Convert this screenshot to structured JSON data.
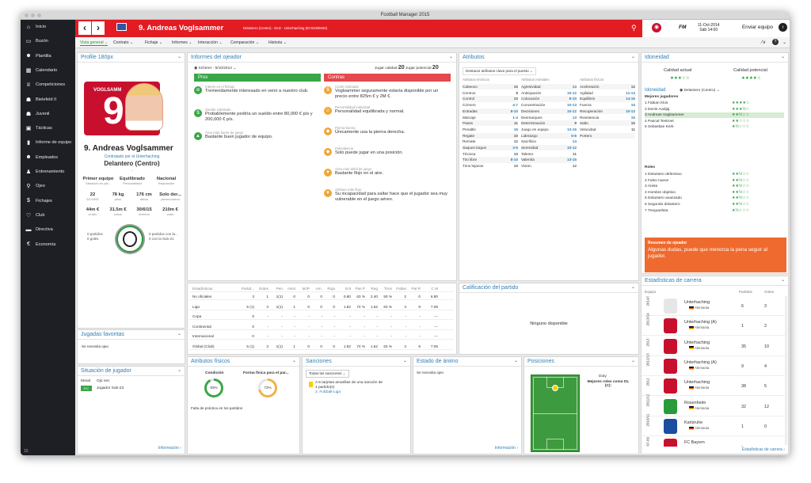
{
  "window": {
    "title": "Football Manager 2015"
  },
  "sidebar": {
    "items": [
      {
        "label": "Inicio",
        "icon": "home-icon",
        "glyph": "⌂"
      },
      {
        "label": "Buzón",
        "icon": "inbox-icon",
        "glyph": "▭"
      },
      {
        "label": "Plantilla",
        "icon": "squad-icon",
        "glyph": "☻"
      },
      {
        "label": "Calendario",
        "icon": "calendar-icon",
        "glyph": "▦"
      },
      {
        "label": "Competiciones",
        "icon": "trophy-icon",
        "glyph": "♕"
      },
      {
        "label": "Bielefeld II",
        "icon": "team-icon",
        "glyph": "☗"
      },
      {
        "label": "Juvenil",
        "icon": "youth-icon",
        "glyph": "☗"
      },
      {
        "label": "Tácticas",
        "icon": "tactics-icon",
        "glyph": "▣"
      },
      {
        "label": "Informe de equipo",
        "icon": "report-icon",
        "glyph": "▮"
      },
      {
        "label": "Empleados",
        "icon": "staff-icon",
        "glyph": "☻"
      },
      {
        "label": "Entrenamiento",
        "icon": "training-icon",
        "glyph": "♟"
      },
      {
        "label": "Ojeo",
        "icon": "scouting-icon",
        "glyph": "⚲"
      },
      {
        "label": "Fichajes",
        "icon": "transfers-icon",
        "glyph": "$"
      },
      {
        "label": "Club",
        "icon": "club-icon",
        "glyph": "♡"
      },
      {
        "label": "Directiva",
        "icon": "board-icon",
        "glyph": "▬"
      },
      {
        "label": "Economía",
        "icon": "finance-icon",
        "glyph": "€"
      }
    ],
    "version": "15"
  },
  "header": {
    "player_name": "9. Andreas Voglsammer",
    "subtitle": "Delantero (Centro) - DLD - Unterhaching (ID:91000630)",
    "date_line1": "11-Oct-2014",
    "date_line2": "Sáb 14:00",
    "continue_label": "Enviar equipo",
    "fm_label": "FM"
  },
  "menubar": {
    "items": [
      "Vista general",
      "Contrato",
      "Fichaje",
      "Informes",
      "Interacción",
      "Comparación",
      "Historia"
    ]
  },
  "profile": {
    "title": "Profile 180px",
    "shirt_number": "9",
    "shirt_club": "VOGLSAMM",
    "name": "9. Andreas Voglsammer",
    "contract_line": "Contratado por el Unterhaching",
    "position": "Delantero (Centro)",
    "dash": "-",
    "labels": [
      {
        "value": "Primer equipo",
        "sub": "Situación en pla..."
      },
      {
        "value": "Equilibrado",
        "sub": "Personalidad"
      },
      {
        "value": "Nacional",
        "sub": "Reputación"
      }
    ],
    "stats1": [
      {
        "value": "22",
        "sub": "9/1/1992"
      },
      {
        "value": "78 kg",
        "sub": "peso"
      },
      {
        "value": "176 cm",
        "sub": "altura"
      },
      {
        "value": "Solo der...",
        "sub": "pierna buena"
      }
    ],
    "stats2": [
      {
        "value": "44m €",
        "sub": "al año"
      },
      {
        "value": "31.5m €",
        "sub": "netos"
      },
      {
        "value": "30/6/15",
        "sub": "termina"
      },
      {
        "value": "210m €",
        "sub": "valor"
      }
    ],
    "caps_left_1": "0 partidos",
    "caps_left_2": "0 goles",
    "caps_right_1": "0 partidos con la...",
    "caps_right_2": "0 con la Sub-21"
  },
  "scout": {
    "title": "Informes del ojeador",
    "scout_line": "Scherer - 5/10/2014",
    "current_label": "Jugar calidad",
    "current_value": "20",
    "potential_label": "Jugar potencial",
    "potential_value": "20",
    "pros_label": "Pros",
    "cons_label": "Contras",
    "pros": [
      {
        "label": "Interés en el fichaje",
        "text": "Tremendamente interesado en venir a nuestro club.",
        "glyph": "⊖",
        "icon": "interest-icon"
      },
      {
        "label": "Sueldo solicitado",
        "text": "Probablemente pediría un sueldo entre 80,000 € p/s y 200,000 € p/s.",
        "glyph": "$",
        "icon": "wage-icon"
      },
      {
        "label": "Área más fuerte de juego",
        "text": "Bastante buen jugador de equipo.",
        "glyph": "▲",
        "icon": "strength-icon"
      }
    ],
    "cons": [
      {
        "label": "Coste estimado",
        "text": "Voglsammer seguramente estaría disponible por un precio entre 825m € y 2M €.",
        "glyph": "$",
        "icon": "cost-icon"
      },
      {
        "label": "Personalidad individual",
        "text": "Personalidad equilibrada y normal.",
        "glyph": "☺",
        "icon": "personality-icon"
      },
      {
        "label": "Pierna buena",
        "text": "Únicamente usa la pierna derecha.",
        "glyph": "◆",
        "icon": "foot-icon"
      },
      {
        "label": "Polivalencia",
        "text": "Solo puede jugar en una posición.",
        "glyph": "◆",
        "icon": "versatility-icon"
      },
      {
        "label": "Área más débil de juego",
        "text": "Bastante flojo en el aire.",
        "glyph": "▼",
        "icon": "weakness-icon"
      },
      {
        "label": "Atributo más flojo",
        "text": "Su incapacidad para saltar hace que el jugador sea muy vulnerable en el juego aéreo.",
        "glyph": "▼",
        "icon": "weak-attr-icon"
      }
    ]
  },
  "attributes": {
    "title": "Atributos",
    "dropdown": "Destacar atributos clave para el puesto",
    "col_headers": [
      "Atributos técnicos",
      "Atributos mentales",
      "Atributos físicos"
    ],
    "technical": [
      {
        "name": "Cabeceo",
        "value": "10"
      },
      {
        "name": "Centros",
        "value": "8"
      },
      {
        "name": "Control",
        "value": "10"
      },
      {
        "name": "Córners",
        "value": "4-7"
      },
      {
        "name": "Entradas",
        "value": "8-10"
      },
      {
        "name": "Marcaje",
        "value": "1-4"
      },
      {
        "name": "Pases",
        "value": "11"
      },
      {
        "name": "Penaltis",
        "value": "16"
      },
      {
        "name": "Regate",
        "value": "10"
      },
      {
        "name": "Remate",
        "value": "12"
      },
      {
        "name": "Saques largos",
        "value": "3-5"
      },
      {
        "name": "Técnica",
        "value": "10"
      },
      {
        "name": "Tiro libre",
        "value": "8-10"
      },
      {
        "name": "Tiros lejanos",
        "value": "10"
      }
    ],
    "mental": [
      {
        "name": "Agresividad",
        "value": "14"
      },
      {
        "name": "Anticipación",
        "value": "10-12"
      },
      {
        "name": "Colocación",
        "value": "8-10"
      },
      {
        "name": "Concentración",
        "value": "10-13"
      },
      {
        "name": "Decisiones",
        "value": "10-12"
      },
      {
        "name": "Desmarques",
        "value": "13"
      },
      {
        "name": "Determinación",
        "value": "9"
      },
      {
        "name": "Juego en equipo",
        "value": "13-15"
      },
      {
        "name": "Liderazgo",
        "value": "5-8"
      },
      {
        "name": "Sacrificio",
        "value": "14"
      },
      {
        "name": "Serenidad",
        "value": "10-12"
      },
      {
        "name": "Talento",
        "value": "11"
      },
      {
        "name": "Valentía",
        "value": "13-15"
      },
      {
        "name": "Visión",
        "value": "12"
      }
    ],
    "physical": [
      {
        "name": "Aceleración",
        "value": "12"
      },
      {
        "name": "Agilidad",
        "value": "11-13"
      },
      {
        "name": "Equilibrio",
        "value": "14-16"
      },
      {
        "name": "Fuerza",
        "value": "15"
      },
      {
        "name": "Recuperación",
        "value": "10-13"
      },
      {
        "name": "Resistencia",
        "value": "15"
      },
      {
        "name": "Salto",
        "value": "10"
      },
      {
        "name": "Velocidad",
        "value": "11"
      },
      {
        "name": "Portero",
        "value": ""
      }
    ]
  },
  "ideality": {
    "title": "Idoneidad",
    "current_label": "Calidad actual",
    "potential_label": "Calidad potencial",
    "current_stars": "★★★☆☆",
    "potential_stars": "★★★★☆",
    "sub_title": "Idoneidad",
    "position_dropdown": "Delantero (Centro)",
    "best_players_label": "Mejores jugadores",
    "best_players": [
      {
        "name": "1  Fabian Klos",
        "stars": "★★★★☆"
      },
      {
        "name": "2  Denis Avdijaj",
        "stars": "★★★½☆"
      },
      {
        "name": "3  Andreas Voglsammer",
        "stars": "★★½☆☆"
      },
      {
        "name": "4  Pascal Testroet",
        "stars": "★★☆☆☆"
      },
      {
        "name": "5  Sebastian Kerk",
        "stars": "★½☆☆☆"
      }
    ],
    "roles_label": "Roles",
    "roles": [
      {
        "name": "1  Delantero defensivo",
        "stars": "★★½☆☆"
      },
      {
        "name": "2  Falso nueve",
        "stars": "★★½☆☆"
      },
      {
        "name": "3  Ariete",
        "stars": "★★½☆☆"
      },
      {
        "name": "4  Hombre objetivo",
        "stars": "★★½☆☆"
      },
      {
        "name": "5  Delantero avanzado",
        "stars": "★★½☆☆"
      },
      {
        "name": "6  Segundo delantero",
        "stars": "★★½☆☆"
      },
      {
        "name": "7  Trequartista",
        "stars": "★½☆☆☆"
      }
    ],
    "summary_title": "Resumen de ojeador",
    "summary_text": "Algunas dudas, puede que merezca la pena seguir al jugador."
  },
  "stats": {
    "headers": [
      "Estadísticas",
      "Partid...",
      "Goles",
      "Pen",
      "Asist",
      "MJP",
      "Am.",
      "Roja",
      "Ent",
      "Pas P",
      "Reg",
      "Tiros",
      "Faltas",
      "Pal R",
      "C M"
    ],
    "rows": [
      [
        "No oficiales",
        "3",
        "1",
        "1(1)",
        "0",
        "0",
        "0",
        "0",
        "0.80",
        "63 %",
        "2.40",
        "50 %",
        "2",
        "0",
        "6.80"
      ],
      [
        "Liga",
        "5 (1)",
        "3",
        "1(1)",
        "1",
        "0",
        "0",
        "0",
        "1.82",
        "74 %",
        "1.62",
        "63 %",
        "3",
        "9",
        "7.05"
      ],
      [
        "Copa",
        "0",
        "-",
        "-",
        "-",
        "-",
        "-",
        "-",
        "-",
        "-",
        "-",
        "-",
        "-",
        "-",
        "---"
      ],
      [
        "Continental",
        "0",
        "-",
        "-",
        "-",
        "-",
        "-",
        "-",
        "-",
        "-",
        "-",
        "-",
        "-",
        "-",
        "---"
      ],
      [
        "Internacional",
        "0",
        "-",
        "-",
        "-",
        "-",
        "-",
        "-",
        "-",
        "-",
        "-",
        "-",
        "-",
        "-",
        "---"
      ],
      [
        "Global (Club)",
        "5 (1)",
        "3",
        "1(1)",
        "1",
        "0",
        "0",
        "0",
        "1.82",
        "74 %",
        "1.62",
        "63 %",
        "3",
        "9",
        "7.05"
      ]
    ]
  },
  "match_rating": {
    "title": "Calificación del partido",
    "empty": "Ninguno disponible"
  },
  "fav_moves": {
    "title": "Jugadas favoritas",
    "text": "Se necesita ojeo"
  },
  "situation": {
    "title": "Situación de jugador",
    "col1": "Moral",
    "col2": "Ojo nec",
    "badge": "P.C",
    "text": "Jugador Sub-23",
    "info_link": "Información"
  },
  "physical": {
    "title": "Atributos físicos",
    "cond_label": "Condición",
    "cond_value": "93%",
    "cond_fraction": 0.93,
    "form_label": "Forma física para el par...",
    "form_value": "72%",
    "form_fraction": 0.72,
    "text": "Falta de práctica en los partidos"
  },
  "sanctions": {
    "title": "Sanciones",
    "dropdown": "Todas las sanciones",
    "line1": "A 5 tarjetas amarillas de una sanción de",
    "line2": "1 partido(s)",
    "league": "3. Fußball-Liga"
  },
  "morale": {
    "title": "Estado de ánimo",
    "text": "Se necesita ojeo",
    "info_link": "Información"
  },
  "positions": {
    "title": "Posiciones",
    "duty": "Duty",
    "best_roles": "Mejores roles como DL (C):"
  },
  "career": {
    "title": "Estadísticas de carrera",
    "headers": [
      "Equipo",
      "Partidos",
      "Goles"
    ],
    "rows": [
      {
        "year": "2014/15",
        "club": "Unterhaching",
        "country": "Alemania",
        "apps": "6",
        "goals": "3",
        "color": "#e6e6e6"
      },
      {
        "year": "2013/14",
        "club": "Unterhaching (A)",
        "country": "Alemania",
        "apps": "1",
        "goals": "2",
        "color": "#c8102e"
      },
      {
        "year": "2013",
        "club": "Unterhaching",
        "country": "Alemania",
        "apps": "35",
        "goals": "10",
        "color": "#c8102e"
      },
      {
        "year": "2012/13",
        "club": "Unterhaching (A)",
        "country": "Alemania",
        "apps": "9",
        "goals": "4",
        "color": "#c8102e"
      },
      {
        "year": "2012",
        "club": "Unterhaching",
        "country": "Alemania",
        "apps": "38",
        "goals": "5",
        "color": "#c8102e"
      },
      {
        "year": "2011/12",
        "club": "Rosenheim",
        "country": "Alemania",
        "apps": "32",
        "goals": "12",
        "color": "#2a9b3a"
      },
      {
        "year": "2010/11",
        "club": "Karlsruhe",
        "country": "Alemania",
        "apps": "1",
        "goals": "0",
        "color": "#1a4ea0"
      },
      {
        "year": "07-09",
        "club": "FC Bayern",
        "country": "",
        "apps": "-",
        "goals": "",
        "color": "#c8102e"
      }
    ],
    "link": "Estadísticas de carrera"
  }
}
